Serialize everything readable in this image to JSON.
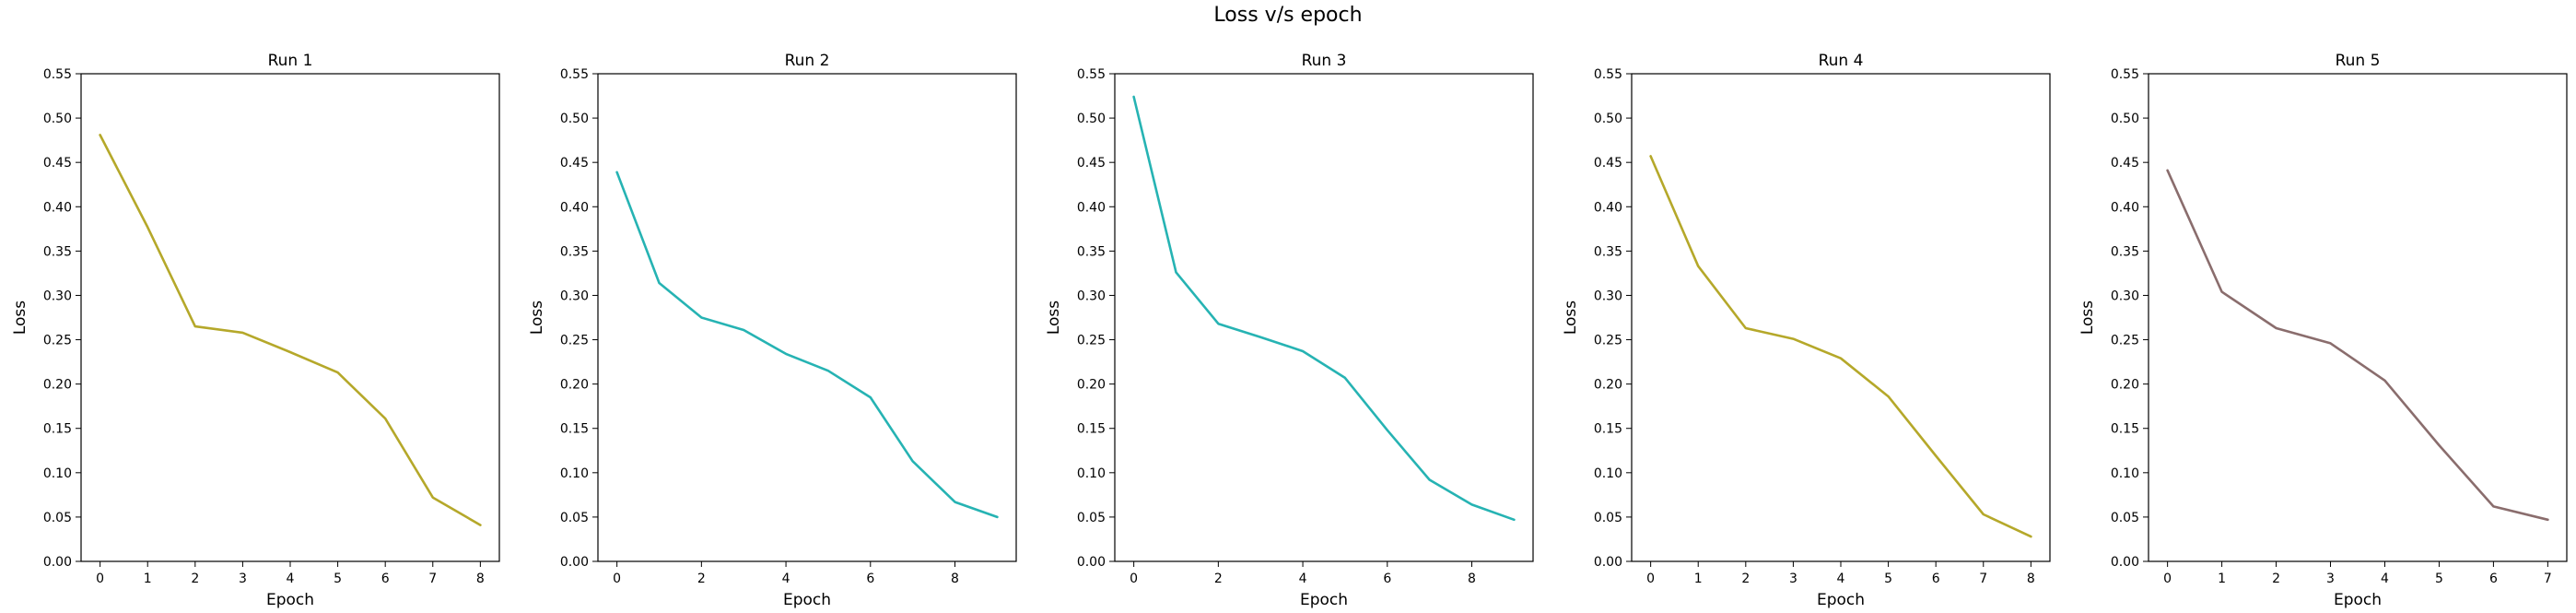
{
  "figure": {
    "title": "Loss v/s epoch"
  },
  "chart_data": [
    {
      "type": "line",
      "title": "Run 1",
      "xlabel": "Epoch",
      "ylabel": "Loss",
      "ylim": [
        0,
        0.55
      ],
      "xticks": [
        0,
        1,
        2,
        3,
        4,
        5,
        6,
        7,
        8
      ],
      "color": "#b5a82a",
      "series": [
        {
          "x": [
            0,
            1,
            2,
            3,
            4,
            5,
            6,
            7,
            8
          ],
          "y": [
            0.481,
            0.377,
            0.265,
            0.258,
            0.236,
            0.213,
            0.161,
            0.072,
            0.041
          ]
        }
      ]
    },
    {
      "type": "line",
      "title": "Run 2",
      "xlabel": "Epoch",
      "ylabel": "Loss",
      "ylim": [
        0,
        0.55
      ],
      "xticks": [
        0,
        2,
        4,
        6,
        8
      ],
      "color": "#26b3b3",
      "series": [
        {
          "x": [
            0,
            1,
            2,
            3,
            4,
            5,
            6,
            7,
            8,
            9
          ],
          "y": [
            0.439,
            0.314,
            0.275,
            0.261,
            0.234,
            0.215,
            0.185,
            0.113,
            0.067,
            0.05
          ]
        }
      ]
    },
    {
      "type": "line",
      "title": "Run 3",
      "xlabel": "Epoch",
      "ylabel": "Loss",
      "ylim": [
        0,
        0.55
      ],
      "xticks": [
        0,
        2,
        4,
        6,
        8
      ],
      "color": "#26b3b3",
      "series": [
        {
          "x": [
            0,
            1,
            2,
            3,
            4,
            5,
            6,
            7,
            8,
            9
          ],
          "y": [
            0.524,
            0.326,
            0.268,
            0.253,
            0.237,
            0.207,
            0.148,
            0.092,
            0.064,
            0.047
          ]
        }
      ]
    },
    {
      "type": "line",
      "title": "Run 4",
      "xlabel": "Epoch",
      "ylabel": "Loss",
      "ylim": [
        0,
        0.55
      ],
      "xticks": [
        0,
        1,
        2,
        3,
        4,
        5,
        6,
        7,
        8
      ],
      "color": "#b5a82a",
      "series": [
        {
          "x": [
            0,
            1,
            2,
            3,
            4,
            5,
            6,
            7,
            8
          ],
          "y": [
            0.457,
            0.333,
            0.263,
            0.251,
            0.229,
            0.186,
            0.119,
            0.053,
            0.028
          ]
        }
      ]
    },
    {
      "type": "line",
      "title": "Run 5",
      "xlabel": "Epoch",
      "ylabel": "Loss",
      "ylim": [
        0,
        0.55
      ],
      "xticks": [
        0,
        1,
        2,
        3,
        4,
        5,
        6,
        7
      ],
      "color": "#8a6d6d",
      "series": [
        {
          "x": [
            0,
            1,
            2,
            3,
            4,
            5,
            6,
            7
          ],
          "y": [
            0.441,
            0.304,
            0.263,
            0.246,
            0.204,
            0.131,
            0.062,
            0.047
          ]
        }
      ]
    }
  ]
}
